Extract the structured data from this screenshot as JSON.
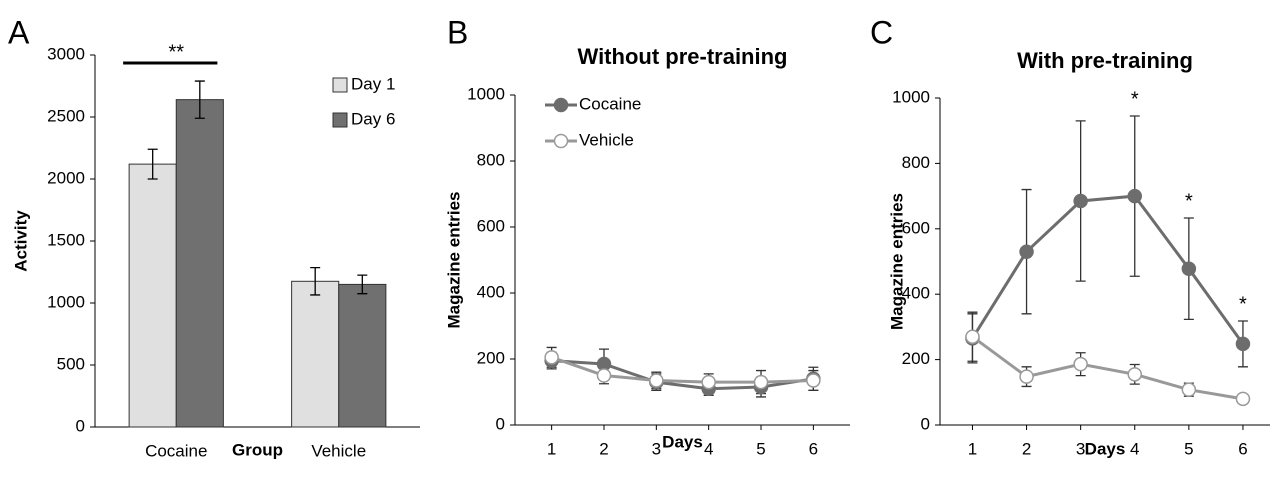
{
  "chart_data": [
    {
      "type": "bar",
      "panel_label": "A",
      "y_label": "Activity",
      "x_label": "Group",
      "categories": [
        "Cocaine",
        "Vehicle"
      ],
      "series": [
        {
          "name": "Day 1",
          "color": "#e0e0e0",
          "values": [
            2120,
            1175
          ],
          "errors": [
            120,
            110
          ]
        },
        {
          "name": "Day 6",
          "color": "#707070",
          "values": [
            2640,
            1150
          ],
          "errors": [
            150,
            75
          ]
        }
      ],
      "ylim": [
        0,
        3000
      ],
      "yticks": [
        0,
        500,
        1000,
        1500,
        2000,
        2500,
        3000
      ],
      "legend": "upper right",
      "annotations": [
        "**"
      ]
    },
    {
      "type": "line",
      "panel_label": "B",
      "title": "Without pre-training",
      "y_label": "Magazine entries",
      "x_label": "Days",
      "x": [
        1,
        2,
        3,
        4,
        5,
        6
      ],
      "series": [
        {
          "name": "Cocaine",
          "color": "#6d6d6d",
          "marker": "filled",
          "values": [
            195,
            185,
            130,
            110,
            115,
            140
          ],
          "errors": [
            25,
            45,
            25,
            20,
            30,
            35
          ]
        },
        {
          "name": "Vehicle",
          "color": "#999999",
          "marker": "open",
          "values": [
            205,
            150,
            135,
            130,
            130,
            135
          ],
          "errors": [
            30,
            25,
            25,
            25,
            35,
            30
          ]
        }
      ],
      "xlim": [
        0.3,
        6.7
      ],
      "xticks": [
        1,
        2,
        3,
        4,
        5,
        6
      ],
      "ylim": [
        0,
        1000
      ],
      "yticks": [
        0,
        200,
        400,
        600,
        800,
        1000
      ],
      "legend": "upper left"
    },
    {
      "type": "line",
      "panel_label": "C",
      "title": "With pre-training",
      "y_label": "Magazine entries",
      "x_label": "Days",
      "x": [
        1,
        2,
        3,
        4,
        5,
        6
      ],
      "series": [
        {
          "name": "Cocaine",
          "color": "#6d6d6d",
          "marker": "filled",
          "values": [
            265,
            530,
            685,
            700,
            478,
            248
          ],
          "errors": [
            75,
            190,
            245,
            245,
            155,
            70
          ]
        },
        {
          "name": "Vehicle",
          "color": "#999999",
          "marker": "open",
          "values": [
            270,
            148,
            186,
            155,
            108,
            80
          ],
          "errors": [
            75,
            30,
            35,
            30,
            20,
            12
          ]
        }
      ],
      "xlim": [
        0.4,
        6.5
      ],
      "xticks": [
        1,
        2,
        3,
        4,
        5,
        6
      ],
      "ylim": [
        0,
        1000
      ],
      "yticks": [
        0,
        200,
        400,
        600,
        800,
        1000
      ],
      "annotations": [
        {
          "text": "*",
          "x": 4
        },
        {
          "text": "*",
          "x": 5
        },
        {
          "text": "*",
          "x": 6
        }
      ]
    }
  ]
}
